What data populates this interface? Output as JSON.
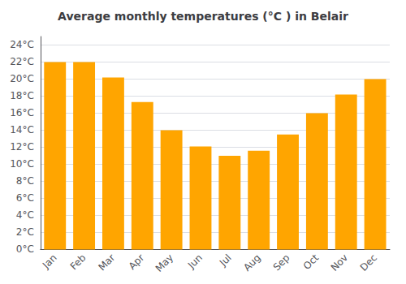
{
  "chart_data": {
    "type": "bar",
    "title": "Average monthly temperatures (°C ) in Belair",
    "categories": [
      "Jan",
      "Feb",
      "Mar",
      "Apr",
      "May",
      "Jun",
      "Jul",
      "Aug",
      "Sep",
      "Oct",
      "Nov",
      "Dec"
    ],
    "values": [
      22,
      22,
      20.2,
      17.3,
      14.0,
      12.1,
      11.0,
      11.6,
      13.5,
      16.0,
      18.2,
      20.0
    ],
    "color": "#FFA500",
    "ylim": [
      0,
      25
    ],
    "yticks": [
      {
        "value": 0,
        "label": "0°C"
      },
      {
        "value": 2,
        "label": "2°C"
      },
      {
        "value": 4,
        "label": "4°C"
      },
      {
        "value": 6,
        "label": "6°C"
      },
      {
        "value": 8,
        "label": "8°C"
      },
      {
        "value": 10,
        "label": "10°C"
      },
      {
        "value": 12,
        "label": "12°C"
      },
      {
        "value": 14,
        "label": "14°C"
      },
      {
        "value": 16,
        "label": "16°C"
      },
      {
        "value": 18,
        "label": "18°C"
      },
      {
        "value": 20,
        "label": "20°C"
      },
      {
        "value": 22,
        "label": "22°C"
      },
      {
        "value": 24,
        "label": "24°C"
      }
    ],
    "grid": true
  }
}
